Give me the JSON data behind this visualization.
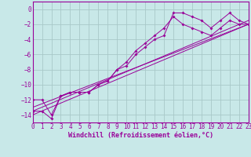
{
  "background_color": "#c8e8e8",
  "grid_color": "#a8c8c8",
  "line_color": "#990099",
  "marker_color": "#990099",
  "xlabel": "Windchill (Refroidissement éolien,°C)",
  "xlim": [
    0,
    23
  ],
  "ylim": [
    -15,
    1
  ],
  "xticks": [
    0,
    1,
    2,
    3,
    4,
    5,
    6,
    7,
    8,
    9,
    10,
    11,
    12,
    13,
    14,
    15,
    16,
    17,
    18,
    19,
    20,
    21,
    22,
    23
  ],
  "yticks": [
    0,
    -2,
    -4,
    -6,
    -8,
    -10,
    -12,
    -14
  ],
  "series1_x": [
    0,
    1,
    2,
    3,
    4,
    5,
    6,
    7,
    8,
    9,
    10,
    11,
    12,
    13,
    14,
    15,
    16,
    17,
    18,
    19,
    20,
    21,
    22,
    23
  ],
  "series1_y": [
    -12,
    -12,
    -14,
    -11.5,
    -11,
    -11,
    -11,
    -10,
    -9.5,
    -8,
    -7.5,
    -6,
    -5,
    -4,
    -3.5,
    -0.5,
    -0.5,
    -1.0,
    -1.5,
    -2.5,
    -1.5,
    -0.5,
    -1.5,
    -2.0
  ],
  "series2_x": [
    0,
    1,
    2,
    3,
    4,
    5,
    6,
    7,
    8,
    9,
    10,
    11,
    12,
    13,
    14,
    15,
    16,
    17,
    18,
    19,
    20,
    21,
    22,
    23
  ],
  "series2_y": [
    -13.5,
    -13.5,
    -14.5,
    -11.5,
    -11,
    -11,
    -11,
    -10,
    -9.5,
    -8,
    -7,
    -5.5,
    -4.5,
    -3.5,
    -2.5,
    -1.0,
    -2.0,
    -2.5,
    -3.0,
    -3.5,
    -2.5,
    -1.5,
    -2.0,
    -2.0
  ],
  "line1_x": [
    0,
    23
  ],
  "line1_y": [
    -14.0,
    -2.0
  ],
  "line2_x": [
    0,
    23
  ],
  "line2_y": [
    -13.5,
    -1.5
  ],
  "line3_x": [
    0,
    23
  ],
  "line3_y": [
    -13.0,
    -2.0
  ],
  "tick_fontsize": 5.5,
  "xlabel_fontsize": 6.0
}
